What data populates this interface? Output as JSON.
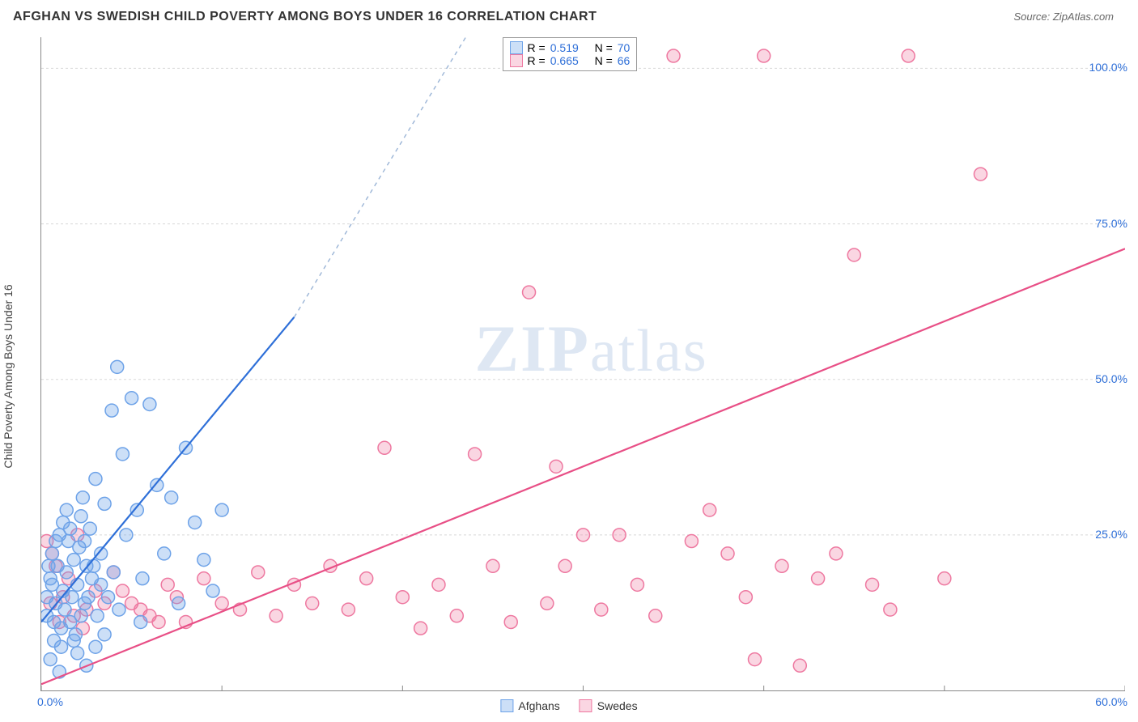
{
  "title": "AFGHAN VS SWEDISH CHILD POVERTY AMONG BOYS UNDER 16 CORRELATION CHART",
  "source_label": "Source: ZipAtlas.com",
  "ylabel": "Child Poverty Among Boys Under 16",
  "watermark": "ZIPatlas",
  "chart": {
    "type": "scatter",
    "xlim": [
      0,
      60
    ],
    "ylim": [
      0,
      105
    ],
    "xticks": [
      0,
      10,
      20,
      30,
      40,
      50,
      60
    ],
    "yticks": [
      25,
      50,
      75,
      100
    ],
    "xtick_labels": {
      "0": "0.0%",
      "60": "60.0%"
    },
    "ytick_labels": {
      "25": "25.0%",
      "50": "50.0%",
      "75": "75.0%",
      "100": "100.0%"
    },
    "grid_color": "#d8d8d8",
    "axis_color": "#888888",
    "tick_label_color": "#2e6fd8",
    "label_fontsize": 14,
    "background_color": "#ffffff",
    "marker_radius": 8,
    "marker_stroke_width": 1.5,
    "line_width": 2.2
  },
  "series": {
    "afghans": {
      "label": "Afghans",
      "fill": "rgba(109,162,232,0.35)",
      "stroke": "#6da2e8",
      "r_value": "0.519",
      "n_value": "70",
      "trend": {
        "x1": 0,
        "y1": 11,
        "x2": 14,
        "y2": 60,
        "dash_to_x": 23.5,
        "dash_to_y": 105
      },
      "points": [
        [
          0.3,
          12
        ],
        [
          0.5,
          18
        ],
        [
          0.6,
          22
        ],
        [
          0.7,
          8
        ],
        [
          0.8,
          14
        ],
        [
          0.9,
          20
        ],
        [
          1.0,
          25
        ],
        [
          1.1,
          10
        ],
        [
          1.2,
          16
        ],
        [
          1.3,
          13
        ],
        [
          1.4,
          19
        ],
        [
          1.5,
          24
        ],
        [
          1.6,
          11
        ],
        [
          1.7,
          15
        ],
        [
          1.8,
          21
        ],
        [
          1.9,
          9
        ],
        [
          2.0,
          17
        ],
        [
          2.1,
          23
        ],
        [
          2.2,
          28
        ],
        [
          2.3,
          31
        ],
        [
          2.4,
          14
        ],
        [
          2.5,
          20
        ],
        [
          2.7,
          26
        ],
        [
          2.8,
          18
        ],
        [
          3.0,
          34
        ],
        [
          3.1,
          12
        ],
        [
          3.3,
          22
        ],
        [
          3.5,
          30
        ],
        [
          3.7,
          15
        ],
        [
          3.9,
          45
        ],
        [
          4.0,
          19
        ],
        [
          4.2,
          52
        ],
        [
          4.5,
          38
        ],
        [
          4.7,
          25
        ],
        [
          5.0,
          47
        ],
        [
          5.3,
          29
        ],
        [
          5.6,
          18
        ],
        [
          6.0,
          46
        ],
        [
          6.4,
          33
        ],
        [
          6.8,
          22
        ],
        [
          7.2,
          31
        ],
        [
          7.6,
          14
        ],
        [
          8.0,
          39
        ],
        [
          8.5,
          27
        ],
        [
          9.0,
          21
        ],
        [
          9.5,
          16
        ],
        [
          10.0,
          29
        ],
        [
          2.0,
          6
        ],
        [
          2.5,
          4
        ],
        [
          1.0,
          3
        ],
        [
          0.5,
          5
        ],
        [
          3.0,
          7
        ],
        [
          3.5,
          9
        ],
        [
          1.2,
          27
        ],
        [
          1.4,
          29
        ],
        [
          0.8,
          24
        ],
        [
          0.6,
          17
        ],
        [
          2.2,
          12
        ],
        [
          2.6,
          15
        ],
        [
          1.8,
          8
        ],
        [
          4.3,
          13
        ],
        [
          5.5,
          11
        ],
        [
          2.9,
          20
        ],
        [
          3.3,
          17
        ],
        [
          0.4,
          20
        ],
        [
          0.3,
          15
        ],
        [
          0.7,
          11
        ],
        [
          1.1,
          7
        ],
        [
          1.6,
          26
        ],
        [
          2.4,
          24
        ]
      ]
    },
    "swedes": {
      "label": "Swedes",
      "fill": "rgba(238,120,160,0.30)",
      "stroke": "#ee78a0",
      "r_value": "0.665",
      "n_value": "66",
      "trend": {
        "x1": 0,
        "y1": 1,
        "x2": 60,
        "y2": 71
      },
      "points": [
        [
          0.5,
          14
        ],
        [
          0.8,
          20
        ],
        [
          1.0,
          11
        ],
        [
          1.5,
          18
        ],
        [
          2.0,
          25
        ],
        [
          2.5,
          13
        ],
        [
          3.0,
          16
        ],
        [
          4.0,
          19
        ],
        [
          5.0,
          14
        ],
        [
          6.0,
          12
        ],
        [
          7.0,
          17
        ],
        [
          8.0,
          11
        ],
        [
          9.0,
          18
        ],
        [
          10.0,
          14
        ],
        [
          11.0,
          13
        ],
        [
          12.0,
          19
        ],
        [
          13.0,
          12
        ],
        [
          14.0,
          17
        ],
        [
          15.0,
          14
        ],
        [
          16.0,
          20
        ],
        [
          17.0,
          13
        ],
        [
          18.0,
          18
        ],
        [
          19.0,
          39
        ],
        [
          20.0,
          15
        ],
        [
          21.0,
          10
        ],
        [
          22.0,
          17
        ],
        [
          23.0,
          12
        ],
        [
          24.0,
          38
        ],
        [
          25.0,
          20
        ],
        [
          26.0,
          11
        ],
        [
          27.0,
          64
        ],
        [
          28.0,
          14
        ],
        [
          28.5,
          36
        ],
        [
          29.0,
          20
        ],
        [
          30.0,
          25
        ],
        [
          31.0,
          13
        ],
        [
          32.0,
          25
        ],
        [
          33.0,
          17
        ],
        [
          34.0,
          12
        ],
        [
          35.0,
          102
        ],
        [
          36.0,
          24
        ],
        [
          37.0,
          29
        ],
        [
          38.0,
          22
        ],
        [
          39.0,
          15
        ],
        [
          40.0,
          102
        ],
        [
          41.0,
          20
        ],
        [
          42.0,
          4
        ],
        [
          43.0,
          18
        ],
        [
          44.0,
          22
        ],
        [
          45.0,
          70
        ],
        [
          46.0,
          17
        ],
        [
          47.0,
          13
        ],
        [
          48.0,
          102
        ],
        [
          39.5,
          5
        ],
        [
          50.0,
          18
        ],
        [
          52.0,
          83
        ],
        [
          0.3,
          24
        ],
        [
          0.6,
          22
        ],
        [
          1.2,
          15
        ],
        [
          1.8,
          12
        ],
        [
          2.3,
          10
        ],
        [
          3.5,
          14
        ],
        [
          4.5,
          16
        ],
        [
          5.5,
          13
        ],
        [
          6.5,
          11
        ],
        [
          7.5,
          15
        ]
      ]
    }
  },
  "stat_legend": {
    "r_label": "R  =",
    "n_label": "N  ="
  },
  "bottom_legend": [
    {
      "key": "afghans"
    },
    {
      "key": "swedes"
    }
  ]
}
